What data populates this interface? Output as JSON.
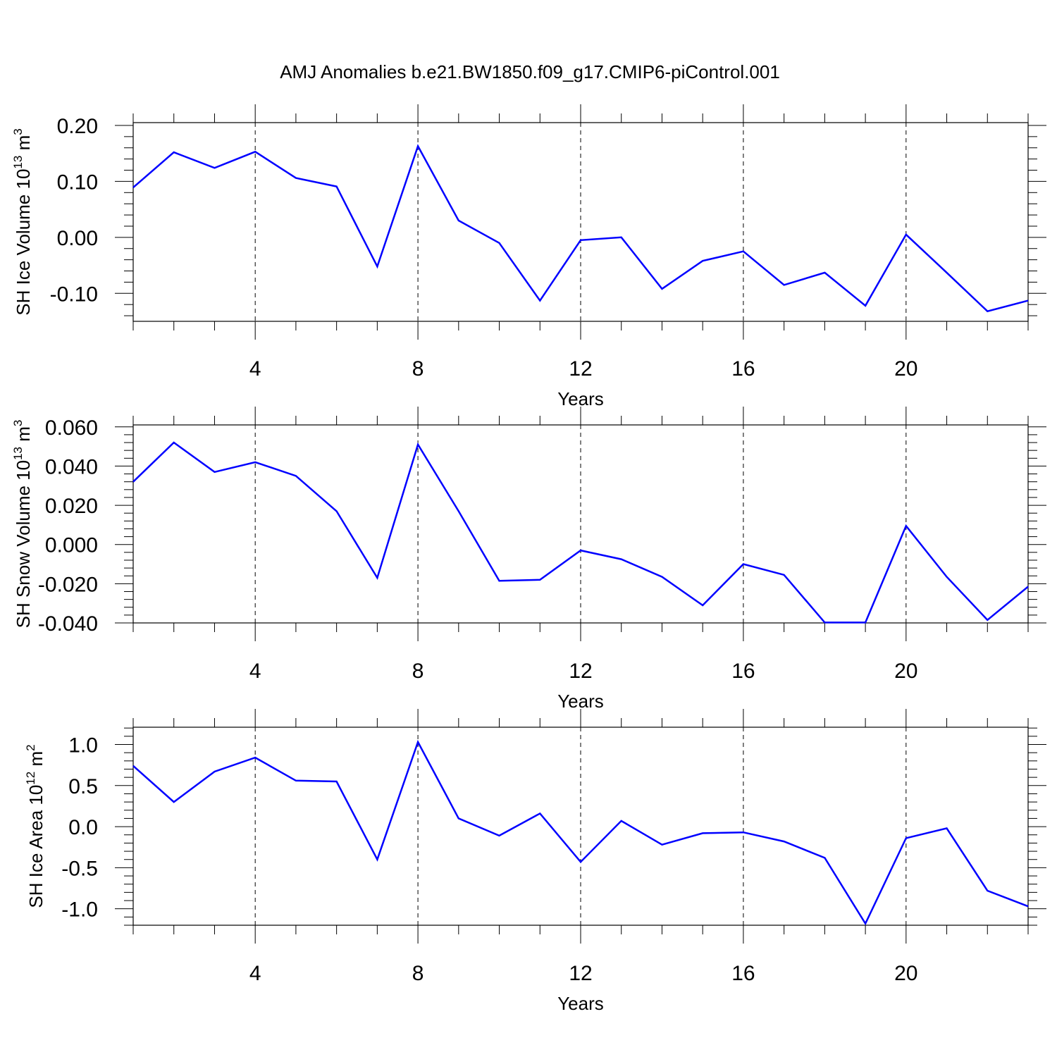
{
  "title": "AMJ Anomalies b.e21.BW1850.f09_g17.CMIP6-piControl.001",
  "line_color": "#0000ff",
  "chart_data": [
    {
      "type": "line",
      "ylabel": "SH Ice Volume 10",
      "ylabel_sup1": "13",
      "ylabel_unit": "m",
      "ylabel_sup2": "3",
      "xlabel": "Years",
      "xlim": [
        1,
        23
      ],
      "ylim": [
        -0.15,
        0.205
      ],
      "yticks": [
        0.2,
        0.1,
        0.0,
        -0.1
      ],
      "ytick_labels": [
        "0.20",
        "0.10",
        "0.00",
        "-0.10"
      ],
      "xticks": [
        4,
        8,
        12,
        16,
        20
      ],
      "xtick_labels": [
        "4",
        "8",
        "12",
        "16",
        "20"
      ],
      "x": [
        1,
        2,
        3,
        4,
        5,
        6,
        7,
        8,
        9,
        10,
        11,
        12,
        13,
        14,
        15,
        16,
        17,
        18,
        19,
        20,
        21,
        22,
        23
      ],
      "values": [
        0.089,
        0.152,
        0.124,
        0.153,
        0.106,
        0.091,
        -0.052,
        0.163,
        0.03,
        -0.01,
        -0.113,
        -0.005,
        0.0,
        -0.092,
        -0.042,
        -0.025,
        -0.085,
        -0.063,
        -0.122,
        0.005,
        -0.063,
        -0.132,
        -0.113
      ]
    },
    {
      "type": "line",
      "ylabel": "SH Snow Volume 10",
      "ylabel_sup1": "13",
      "ylabel_unit": "m",
      "ylabel_sup2": "3",
      "xlabel": "Years",
      "xlim": [
        1,
        23
      ],
      "ylim": [
        -0.04,
        0.061
      ],
      "yticks": [
        0.06,
        0.04,
        0.02,
        0.0,
        -0.02,
        -0.04
      ],
      "ytick_labels": [
        "0.060",
        "0.040",
        "0.020",
        "0.000",
        "-0.020",
        "-0.040"
      ],
      "xticks": [
        4,
        8,
        12,
        16,
        20
      ],
      "xtick_labels": [
        "4",
        "8",
        "12",
        "16",
        "20"
      ],
      "x": [
        1,
        2,
        3,
        4,
        5,
        6,
        7,
        8,
        9,
        10,
        11,
        12,
        13,
        14,
        15,
        16,
        17,
        18,
        19,
        20,
        21,
        22,
        23
      ],
      "values": [
        0.032,
        0.052,
        0.037,
        0.042,
        0.035,
        0.017,
        -0.017,
        0.051,
        0.017,
        -0.0185,
        -0.018,
        -0.003,
        -0.0075,
        -0.0165,
        -0.031,
        -0.01,
        -0.0155,
        -0.0398,
        -0.0398,
        0.0095,
        -0.0165,
        -0.0385,
        -0.0215
      ]
    },
    {
      "type": "line",
      "ylabel": "SH Ice Area 10",
      "ylabel_sup1": "12",
      "ylabel_unit": "m",
      "ylabel_sup2": "2",
      "xlabel": "Years",
      "xlim": [
        1,
        23
      ],
      "ylim": [
        -1.2,
        1.21
      ],
      "yticks": [
        1.0,
        0.5,
        0.0,
        -0.5,
        -1.0
      ],
      "ytick_labels": [
        "1.0",
        "0.5",
        "0.0",
        "-0.5",
        "-1.0"
      ],
      "xticks": [
        4,
        8,
        12,
        16,
        20
      ],
      "xtick_labels": [
        "4",
        "8",
        "12",
        "16",
        "20"
      ],
      "x": [
        1,
        2,
        3,
        4,
        5,
        6,
        7,
        8,
        9,
        10,
        11,
        12,
        13,
        14,
        15,
        16,
        17,
        18,
        19,
        20,
        21,
        22,
        23
      ],
      "values": [
        0.74,
        0.3,
        0.67,
        0.84,
        0.56,
        0.55,
        -0.4,
        1.03,
        0.1,
        -0.11,
        0.16,
        -0.43,
        0.07,
        -0.22,
        -0.08,
        -0.07,
        -0.18,
        -0.38,
        -1.18,
        -0.14,
        -0.02,
        -0.78,
        -0.97
      ]
    }
  ]
}
